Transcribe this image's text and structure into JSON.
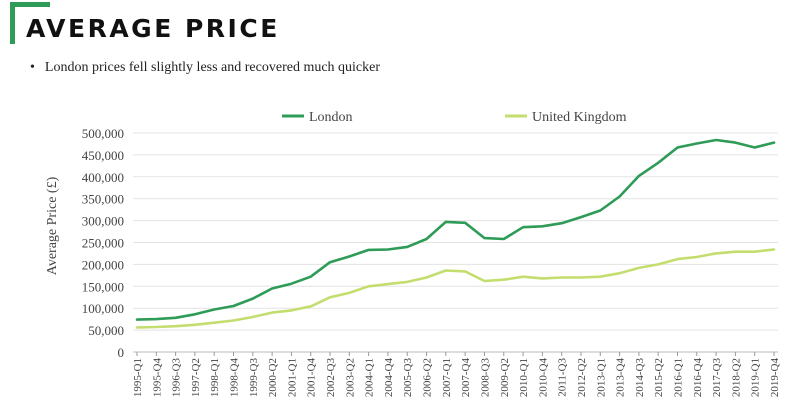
{
  "header": {
    "title": "AVERAGE PRICE",
    "bullet": "London prices fell slightly less and recovered much quicker",
    "accent_color": "#2e9b57"
  },
  "chart_data": {
    "type": "line",
    "ylabel": "Average Price (£)",
    "xlabel": "",
    "ylim": [
      0,
      500000
    ],
    "yticks": [
      0,
      50000,
      100000,
      150000,
      200000,
      250000,
      300000,
      350000,
      400000,
      450000,
      500000
    ],
    "ytick_labels": [
      "0",
      "50,000",
      "100,000",
      "150,000",
      "200,000",
      "250,000",
      "300,000",
      "350,000",
      "400,000",
      "450,000",
      "500,000"
    ],
    "legend_position": "top",
    "grid": "horizontal",
    "categories": [
      "1995-Q1",
      "1995-Q4",
      "1996-Q3",
      "1997-Q2",
      "1998-Q1",
      "1998-Q4",
      "1999-Q3",
      "2000-Q2",
      "2001-Q1",
      "2001-Q4",
      "2002-Q3",
      "2003-Q2",
      "2004-Q1",
      "2004-Q4",
      "2005-Q3",
      "2006-Q2",
      "2007-Q1",
      "2007-Q4",
      "2008-Q3",
      "2009-Q2",
      "2010-Q1",
      "2010-Q4",
      "2011-Q3",
      "2012-Q2",
      "2013-Q1",
      "2013-Q4",
      "2014-Q3",
      "2015-Q2",
      "2016-Q1",
      "2016-Q4",
      "2017-Q3",
      "2018-Q2",
      "2019-Q1",
      "2019-Q4"
    ],
    "series": [
      {
        "name": "London",
        "color": "#2e9b57",
        "values": [
          74000,
          75000,
          78000,
          86000,
          97000,
          105000,
          122000,
          145000,
          156000,
          172000,
          205000,
          218000,
          233000,
          234000,
          240000,
          258000,
          297000,
          295000,
          260000,
          258000,
          285000,
          287000,
          294000,
          308000,
          323000,
          355000,
          402000,
          432000,
          467000,
          476000,
          484000,
          478000,
          467000,
          478000
        ]
      },
      {
        "name": "United Kingdom",
        "color": "#c3de6f",
        "values": [
          56000,
          57000,
          59000,
          62000,
          67000,
          72000,
          80000,
          90000,
          95000,
          104000,
          125000,
          135000,
          150000,
          155000,
          160000,
          170000,
          186000,
          184000,
          162000,
          165000,
          172000,
          168000,
          170000,
          170000,
          172000,
          180000,
          192000,
          200000,
          212000,
          217000,
          225000,
          229000,
          229000,
          234000
        ]
      }
    ]
  }
}
